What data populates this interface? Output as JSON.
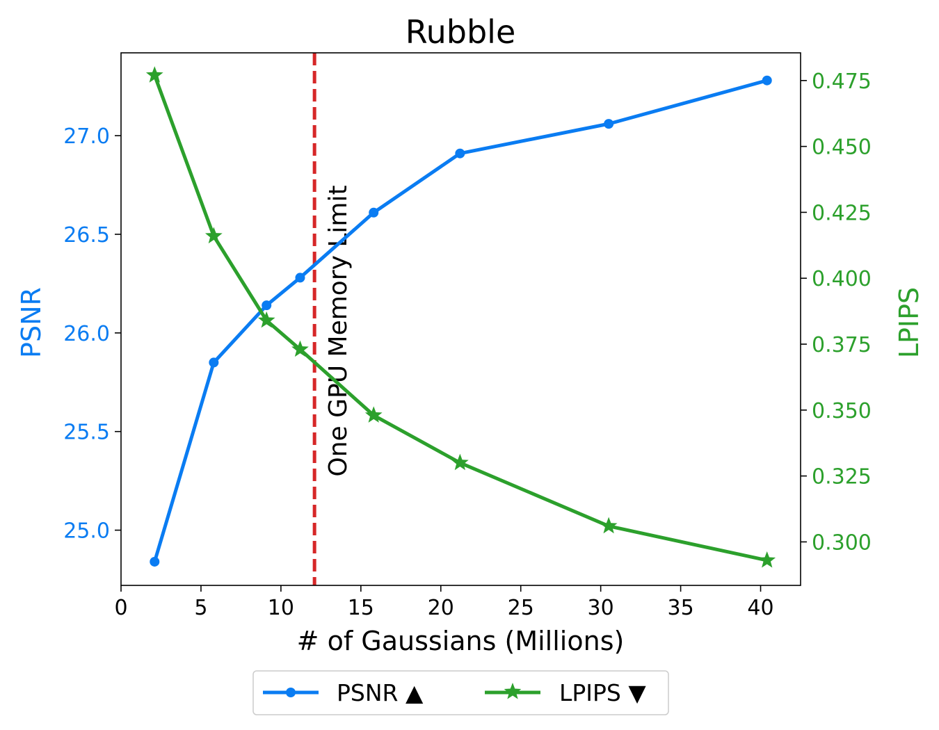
{
  "chart_data": {
    "type": "line",
    "title": "Rubble",
    "xlabel": "# of Gaussians (Millions)",
    "ylabel_left": "PSNR",
    "ylabel_right": "LPIPS",
    "xlim": [
      0,
      42.5
    ],
    "ylim_left": [
      24.72,
      27.42
    ],
    "ylim_right": [
      0.2835,
      0.4855
    ],
    "xticks": [
      "0",
      "5",
      "10",
      "15",
      "20",
      "25",
      "30",
      "35",
      "40"
    ],
    "yticks_left": [
      "25.0",
      "25.5",
      "26.0",
      "26.5",
      "27.0"
    ],
    "yticks_right": [
      "0.300",
      "0.325",
      "0.350",
      "0.375",
      "0.400",
      "0.425",
      "0.450",
      "0.475"
    ],
    "grid": false,
    "legend_position": "bottom-center",
    "series": [
      {
        "name": "PSNR ▲",
        "axis": "left",
        "color": "#0a7cf2",
        "marker": "circle",
        "x": [
          2.1,
          5.8,
          9.1,
          11.2,
          15.8,
          21.2,
          30.5,
          40.4
        ],
        "y": [
          24.84,
          25.85,
          26.14,
          26.28,
          26.61,
          26.91,
          27.06,
          27.28
        ]
      },
      {
        "name": "LPIPS ▼",
        "axis": "right",
        "color": "#2ca02c",
        "marker": "star",
        "x": [
          2.1,
          5.8,
          9.1,
          11.2,
          15.8,
          21.2,
          30.5,
          40.4
        ],
        "y": [
          0.477,
          0.416,
          0.384,
          0.373,
          0.348,
          0.33,
          0.306,
          0.293
        ]
      }
    ],
    "annotation": {
      "text": "One GPU Memory Limit",
      "x": 12.1,
      "color": "#d62728",
      "style": "dashed-vertical-line"
    }
  }
}
